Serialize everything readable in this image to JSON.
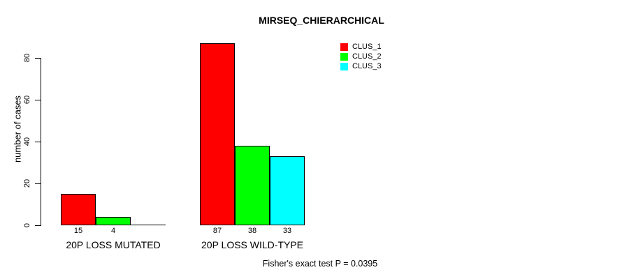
{
  "title": "MIRSEQ_CHIERARCHICAL",
  "chart_data": {
    "type": "bar",
    "title": "MIRSEQ_CHIERARCHICAL",
    "xlabel": "",
    "ylabel": "number of cases",
    "ylim": [
      0,
      87
    ],
    "yticks": [
      0,
      20,
      40,
      60,
      80
    ],
    "grid": false,
    "legend_position": "top-right",
    "categories": [
      "20P LOSS MUTATED",
      "20P LOSS WILD-TYPE"
    ],
    "series": [
      {
        "name": "CLUS_1",
        "color": "#ff0000",
        "values": [
          15,
          87
        ]
      },
      {
        "name": "CLUS_2",
        "color": "#00ff00",
        "values": [
          4,
          38
        ]
      },
      {
        "name": "CLUS_3",
        "color": "#00ffff",
        "values": [
          0,
          33
        ]
      }
    ],
    "bar_value_labels": [
      [
        "15",
        "4",
        ""
      ],
      [
        "87",
        "38",
        "33"
      ]
    ],
    "axis_color": "#000000"
  },
  "footer": {
    "stats_text": "Fisher's exact test P = 0.0395"
  }
}
